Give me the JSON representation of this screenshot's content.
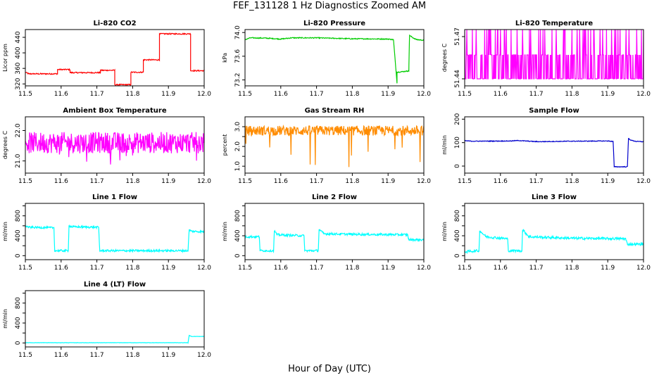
{
  "figure": {
    "title": "FEF_131128 1 Hz Diagnostics Zoomed AM",
    "xlabel": "Hour of Day (UTC)"
  },
  "chart_data": [
    {
      "type": "line",
      "title": "Li-820 CO2",
      "ylabel": "Licor ppm",
      "color": "#ff0000",
      "xlim": [
        11.5,
        12.0
      ],
      "ylim": [
        315,
        460
      ],
      "xticks": [
        "11.5",
        "11.6",
        "11.7",
        "11.8",
        "11.9",
        "12.0"
      ],
      "yticks": [
        320,
        360,
        400,
        440
      ],
      "ytick_labels": [
        "320",
        "360",
        "400",
        "440"
      ],
      "segments": [
        [
          11.5,
          350
        ],
        [
          11.51,
          346
        ],
        [
          11.59,
          346
        ],
        [
          11.59,
          357
        ],
        [
          11.625,
          357
        ],
        [
          11.625,
          349
        ],
        [
          11.71,
          349
        ],
        [
          11.71,
          355
        ],
        [
          11.75,
          355
        ],
        [
          11.75,
          318
        ],
        [
          11.795,
          318
        ],
        [
          11.795,
          350
        ],
        [
          11.83,
          350
        ],
        [
          11.83,
          382
        ],
        [
          11.875,
          382
        ],
        [
          11.875,
          449
        ],
        [
          11.962,
          449
        ],
        [
          11.962,
          354
        ],
        [
          12.0,
          354
        ]
      ],
      "noise": 1.5
    },
    {
      "type": "line",
      "title": "Li-820 Pressure",
      "ylabel": "kPa",
      "color": "#00cc00",
      "xlim": [
        11.5,
        12.0
      ],
      "ylim": [
        73.1,
        74.05
      ],
      "xticks": [
        "11.5",
        "11.6",
        "11.7",
        "11.8",
        "11.9",
        "12.0"
      ],
      "yticks": [
        73.2,
        73.6,
        74.0
      ],
      "ytick_labels": [
        "73.2",
        "73.6",
        "74.0"
      ],
      "segments": [
        [
          11.5,
          73.88
        ],
        [
          11.515,
          73.91
        ],
        [
          11.56,
          73.905
        ],
        [
          11.6,
          73.89
        ],
        [
          11.63,
          73.91
        ],
        [
          11.7,
          73.91
        ],
        [
          11.8,
          73.895
        ],
        [
          11.9,
          73.89
        ],
        [
          11.915,
          73.88
        ],
        [
          11.925,
          73.15
        ],
        [
          11.925,
          73.33
        ],
        [
          11.955,
          73.35
        ],
        [
          11.958,
          73.35
        ],
        [
          11.96,
          73.95
        ],
        [
          11.97,
          73.91
        ],
        [
          11.98,
          73.88
        ],
        [
          12.0,
          73.87
        ]
      ],
      "noise": 0.008
    },
    {
      "type": "line",
      "title": "Li-820 Temperature",
      "ylabel": "degrees C",
      "color": "#ff00ff",
      "xlim": [
        11.5,
        12.0
      ],
      "ylim": [
        51.435,
        51.475
      ],
      "xticks": [
        "11.5",
        "11.6",
        "11.7",
        "11.8",
        "11.9",
        "12.0"
      ],
      "yticks": [
        51.44,
        51.47
      ],
      "ytick_labels": [
        "51.44",
        "51.47"
      ],
      "segments": [
        [
          11.5,
          51.45
        ],
        [
          12.0,
          51.45
        ]
      ],
      "noise": 0
    },
    {
      "type": "line",
      "title": "Ambient Box Temperature",
      "ylabel": "degrees C",
      "color": "#ff00ff",
      "xlim": [
        11.5,
        12.0
      ],
      "ylim": [
        20.6,
        22.45
      ],
      "xticks": [
        "11.5",
        "11.6",
        "11.7",
        "11.8",
        "11.9",
        "12.0"
      ],
      "yticks": [
        21.0,
        22.0
      ],
      "ytick_labels": [
        "21.0",
        "22.0"
      ],
      "segments": [
        [
          11.5,
          21.6
        ],
        [
          12.0,
          21.6
        ]
      ],
      "noise": 0.35
    },
    {
      "type": "line",
      "title": "Gas Stream RH",
      "ylabel": "percent",
      "color": "#ff8c00",
      "xlim": [
        11.5,
        12.0
      ],
      "ylim": [
        0.65,
        3.5
      ],
      "xticks": [
        "11.5",
        "11.6",
        "11.7",
        "11.8",
        "11.9",
        "12.0"
      ],
      "yticks": [
        1.0,
        1.5,
        2.0,
        2.5,
        3.0
      ],
      "ytick_labels": [
        "1.0",
        "",
        "2.0",
        "",
        "3.0"
      ],
      "segments": [
        [
          11.5,
          2.8
        ],
        [
          12.0,
          2.8
        ]
      ],
      "noise": 0.25
    },
    {
      "type": "line",
      "title": "Sample Flow",
      "ylabel": "ml/min",
      "color": "#0000cc",
      "xlim": [
        11.5,
        12.0
      ],
      "ylim": [
        -30,
        210
      ],
      "xticks": [
        "11.5",
        "11.6",
        "11.7",
        "11.8",
        "11.9",
        "12.0"
      ],
      "yticks": [
        0,
        100,
        200
      ],
      "ytick_labels": [
        "0",
        "100",
        "200"
      ],
      "segments": [
        [
          11.5,
          108
        ],
        [
          11.52,
          106
        ],
        [
          11.63,
          107
        ],
        [
          11.65,
          109
        ],
        [
          11.7,
          104
        ],
        [
          11.8,
          106
        ],
        [
          11.9,
          107
        ],
        [
          11.915,
          105
        ],
        [
          11.918,
          -3
        ],
        [
          11.955,
          -3
        ],
        [
          11.958,
          118
        ],
        [
          11.965,
          110
        ],
        [
          11.98,
          105
        ],
        [
          12.0,
          104
        ]
      ],
      "noise": 1.5
    },
    {
      "type": "line",
      "title": "Line 1 Flow",
      "ylabel": "ml/min",
      "color": "#00ffff",
      "xlim": [
        11.5,
        12.0
      ],
      "ylim": [
        -80,
        1050
      ],
      "xticks": [
        "11.5",
        "11.6",
        "11.7",
        "11.8",
        "11.9",
        "12.0"
      ],
      "yticks": [
        0,
        200,
        400,
        600,
        800,
        1000
      ],
      "ytick_labels": [
        "0",
        "",
        "400",
        "",
        "800",
        ""
      ],
      "segments": [
        [
          11.5,
          600
        ],
        [
          11.51,
          570
        ],
        [
          11.58,
          560
        ],
        [
          11.582,
          100
        ],
        [
          11.62,
          100
        ],
        [
          11.622,
          600
        ],
        [
          11.63,
          580
        ],
        [
          11.705,
          570
        ],
        [
          11.708,
          100
        ],
        [
          11.955,
          100
        ],
        [
          11.958,
          520
        ],
        [
          11.965,
          490
        ],
        [
          12.0,
          480
        ]
      ],
      "noise": 20
    },
    {
      "type": "line",
      "title": "Line 2 Flow",
      "ylabel": "ml/min",
      "color": "#00ffff",
      "xlim": [
        11.5,
        12.0
      ],
      "ylim": [
        -80,
        1050
      ],
      "xticks": [
        "11.5",
        "11.6",
        "11.7",
        "11.8",
        "11.9",
        "12.0"
      ],
      "yticks": [
        0,
        200,
        400,
        600,
        800,
        1000
      ],
      "ytick_labels": [
        "0",
        "",
        "400",
        "",
        "800",
        ""
      ],
      "segments": [
        [
          11.5,
          380
        ],
        [
          11.54,
          380
        ],
        [
          11.542,
          100
        ],
        [
          11.58,
          100
        ],
        [
          11.582,
          500
        ],
        [
          11.59,
          420
        ],
        [
          11.665,
          400
        ],
        [
          11.667,
          100
        ],
        [
          11.705,
          100
        ],
        [
          11.707,
          530
        ],
        [
          11.72,
          440
        ],
        [
          11.8,
          430
        ],
        [
          11.955,
          420
        ],
        [
          11.958,
          320
        ],
        [
          12.0,
          320
        ]
      ],
      "noise": 22
    },
    {
      "type": "line",
      "title": "Line 3 Flow",
      "ylabel": "ml/min",
      "color": "#00ffff",
      "xlim": [
        11.5,
        12.0
      ],
      "ylim": [
        -80,
        1050
      ],
      "xticks": [
        "11.5",
        "11.6",
        "11.7",
        "11.8",
        "11.9",
        "12.0"
      ],
      "yticks": [
        0,
        200,
        400,
        600,
        800,
        1000
      ],
      "ytick_labels": [
        "0",
        "",
        "400",
        "",
        "800",
        ""
      ],
      "segments": [
        [
          11.5,
          80
        ],
        [
          11.54,
          100
        ],
        [
          11.542,
          500
        ],
        [
          11.56,
          380
        ],
        [
          11.62,
          340
        ],
        [
          11.622,
          100
        ],
        [
          11.66,
          100
        ],
        [
          11.662,
          520
        ],
        [
          11.68,
          380
        ],
        [
          11.8,
          350
        ],
        [
          11.95,
          340
        ],
        [
          11.955,
          230
        ],
        [
          12.0,
          230
        ]
      ],
      "noise": 25
    },
    {
      "type": "line",
      "title": "Line 4 (LT) Flow",
      "ylabel": "ml/min",
      "color": "#00ffff",
      "xlim": [
        11.5,
        12.0
      ],
      "ylim": [
        -80,
        1050
      ],
      "xticks": [
        "11.5",
        "11.6",
        "11.7",
        "11.8",
        "11.9",
        "12.0"
      ],
      "yticks": [
        0,
        200,
        400,
        600,
        800,
        1000
      ],
      "ytick_labels": [
        "0",
        "",
        "400",
        "",
        "800",
        ""
      ],
      "segments": [
        [
          11.5,
          5
        ],
        [
          11.955,
          5
        ],
        [
          11.958,
          150
        ],
        [
          11.965,
          130
        ],
        [
          12.0,
          130
        ]
      ],
      "noise": 3
    }
  ]
}
